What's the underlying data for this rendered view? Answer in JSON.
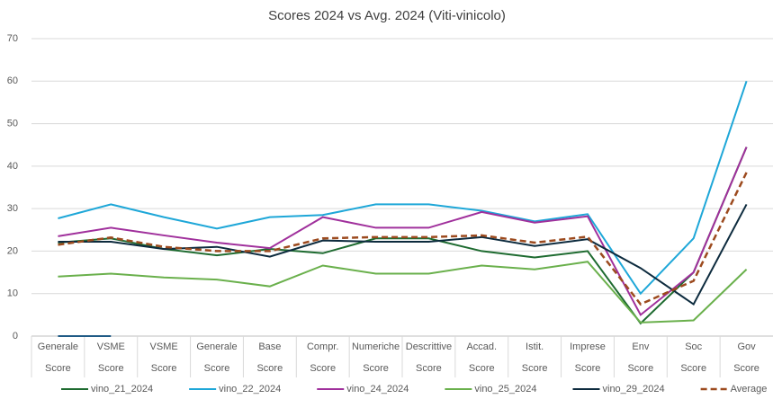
{
  "chart_data": {
    "type": "line",
    "title": "Scores 2024 vs Avg. 2024 (Viti-vinicolo)",
    "categories": [
      "Generale Score",
      "VSME Score",
      "VSME Score",
      "Generale Score",
      "Base Score",
      "Compr. Score",
      "Numeriche Score",
      "Descrittive Score",
      "Accad. Score",
      "Istit. Score",
      "Imprese Score",
      "Env Score",
      "Soc Score",
      "Gov Score"
    ],
    "ylim": [
      0,
      70
    ],
    "yticks": [
      0,
      10,
      20,
      30,
      40,
      50,
      60,
      70
    ],
    "grid": true,
    "legend": "bottom",
    "series": [
      {
        "name": "vino_21_2024",
        "color": "#1e6b30",
        "values": [
          22,
          23,
          20.5,
          19,
          20.5,
          19.5,
          23,
          23,
          20,
          18.5,
          20,
          3,
          15,
          44.5
        ]
      },
      {
        "name": "vino_22_2024",
        "color": "#1ea7d8",
        "values": [
          27.7,
          31,
          28,
          25.3,
          28,
          28.5,
          31,
          31,
          29.5,
          27,
          28.7,
          10,
          23,
          60
        ]
      },
      {
        "name": "vino_24_2024",
        "color": "#a0309c",
        "values": [
          23.5,
          25.5,
          23.7,
          22,
          20.7,
          28,
          25.5,
          25.5,
          29.2,
          26.7,
          28.2,
          5,
          15,
          44.5
        ]
      },
      {
        "name": "vino_25_2024",
        "color": "#6ab04c",
        "values": [
          14,
          14.7,
          13.8,
          13.3,
          11.7,
          16.6,
          14.7,
          14.7,
          16.6,
          15.7,
          17.5,
          3.2,
          3.7,
          15.7
        ]
      },
      {
        "name": "vino_29_2024",
        "color": "#0d2b3e",
        "values": [
          22.2,
          22.2,
          20.5,
          21,
          18.7,
          22.5,
          22.2,
          22.2,
          23.3,
          21.2,
          22.8,
          16,
          7.5,
          31
        ]
      },
      {
        "name": "Average",
        "color": "#9c4a1e",
        "dashed": true,
        "values": [
          21.5,
          23.2,
          21,
          20,
          20,
          23,
          23.3,
          23.3,
          23.7,
          22,
          23.4,
          7.5,
          13,
          38.5
        ]
      },
      {
        "color": "#1f5a85",
        "values": [
          0,
          0,
          null,
          null,
          null,
          null,
          null,
          null,
          null,
          null,
          null,
          null,
          null,
          null
        ]
      }
    ]
  }
}
